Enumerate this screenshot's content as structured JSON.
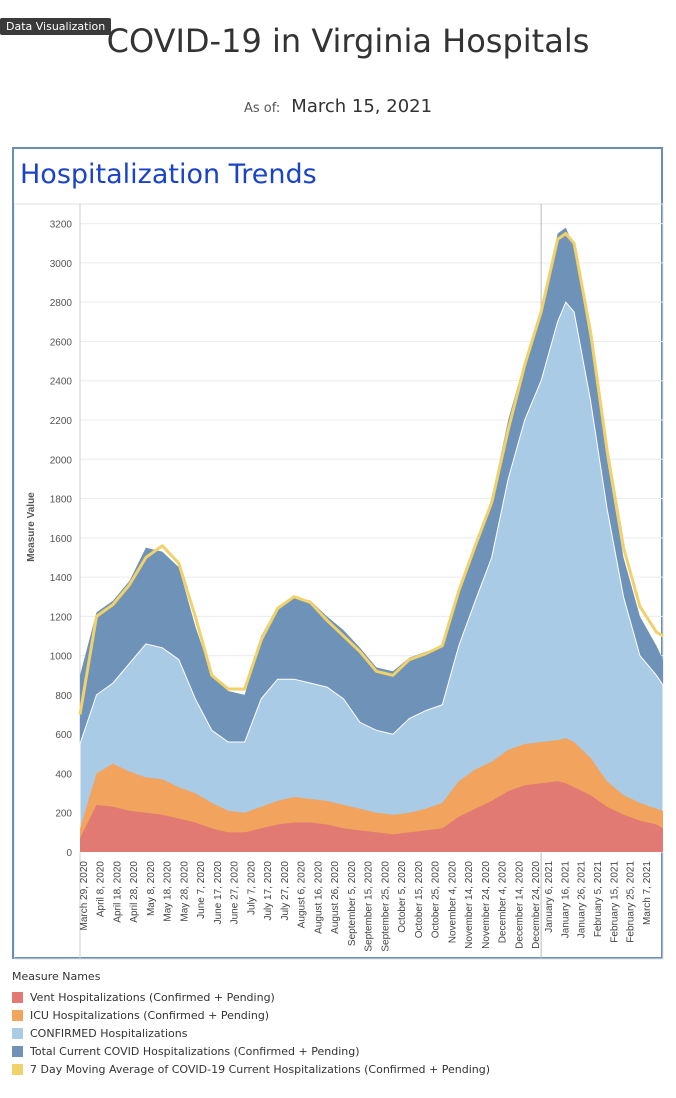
{
  "header": {
    "badge": "Data Visualization",
    "title": "COVID-19 in Virginia Hospitals",
    "asof_label": "As of:",
    "asof_value": "March 15, 2021"
  },
  "panel": {
    "title": "Hospitalization Trends"
  },
  "legend": {
    "title": "Measure Names",
    "items": [
      {
        "label": "Vent Hospitalizations (Confirmed + Pending)",
        "color": "#e07a72"
      },
      {
        "label": "ICU Hospitalizations (Confirmed + Pending)",
        "color": "#f2a35e"
      },
      {
        "label": "CONFIRMED Hospitalizations",
        "color": "#a9cbe6"
      },
      {
        "label": "Total Current COVID Hospitalizations (Confirmed + Pending)",
        "color": "#6f93b8"
      },
      {
        "label": "7 Day Moving Average of COVID-19 Current Hospitalizations (Confirmed + Pending)",
        "color": "#f0d16a"
      }
    ]
  },
  "chart_data": {
    "type": "area",
    "ylabel": "Measure Value",
    "ylim": [
      0,
      3300
    ],
    "yticks": [
      0,
      200,
      400,
      600,
      800,
      1000,
      1200,
      1400,
      1600,
      1800,
      2000,
      2200,
      2400,
      2600,
      2800,
      3000,
      3200
    ],
    "x_start": "2020-03-26",
    "x_end": "2021-03-15",
    "xticks": [
      "March 29, 2020",
      "April 8, 2020",
      "April 18, 2020",
      "April 28, 2020",
      "May 8, 2020",
      "May 18, 2020",
      "May 28, 2020",
      "June 7, 2020",
      "June 17, 2020",
      "June 27, 2020",
      "July 7, 2020",
      "July 17, 2020",
      "July 27, 2020",
      "August 6, 2020",
      "August 16, 2020",
      "August 26, 2020",
      "September 5, 2020",
      "September 15, 2020",
      "September 25, 2020",
      "October 5, 2020",
      "October 15, 2020",
      "October 25, 2020",
      "November 4, 2020",
      "November 14, 2020",
      "November 24, 2020",
      "December 4, 2020",
      "December 14, 2020",
      "December 24, 2020",
      "January 6, 2021",
      "January 16, 2021",
      "January 26, 2021",
      "February 5, 2021",
      "February 15, 2021",
      "February 25, 2021",
      "March 7, 2021"
    ],
    "divider_date": "2020-12-31",
    "dates": [
      "2020-03-26",
      "2020-04-05",
      "2020-04-15",
      "2020-04-25",
      "2020-05-05",
      "2020-05-15",
      "2020-05-25",
      "2020-06-04",
      "2020-06-14",
      "2020-06-24",
      "2020-07-04",
      "2020-07-14",
      "2020-07-24",
      "2020-08-03",
      "2020-08-13",
      "2020-08-23",
      "2020-09-02",
      "2020-09-12",
      "2020-09-22",
      "2020-10-02",
      "2020-10-12",
      "2020-10-22",
      "2020-11-01",
      "2020-11-11",
      "2020-11-21",
      "2020-12-01",
      "2020-12-11",
      "2020-12-21",
      "2020-12-31",
      "2021-01-10",
      "2021-01-15",
      "2021-01-20",
      "2021-01-30",
      "2021-02-09",
      "2021-02-19",
      "2021-03-01",
      "2021-03-11",
      "2021-03-15"
    ],
    "series": [
      {
        "name": "Total Current COVID Hospitalizations (Confirmed + Pending)",
        "values": [
          900,
          1220,
          1280,
          1380,
          1550,
          1530,
          1450,
          1150,
          900,
          820,
          800,
          1100,
          1250,
          1300,
          1280,
          1200,
          1130,
          1040,
          940,
          920,
          990,
          1020,
          1050,
          1350,
          1560,
          1800,
          2200,
          2500,
          2750,
          3150,
          3180,
          3080,
          2600,
          2000,
          1500,
          1200,
          1050,
          980
        ]
      },
      {
        "name": "CONFIRMED Hospitalizations",
        "values": [
          550,
          800,
          860,
          960,
          1060,
          1040,
          980,
          780,
          620,
          560,
          560,
          780,
          880,
          880,
          860,
          840,
          780,
          660,
          620,
          600,
          680,
          720,
          750,
          1050,
          1280,
          1500,
          1900,
          2200,
          2400,
          2700,
          2800,
          2750,
          2300,
          1750,
          1300,
          1000,
          900,
          850
        ]
      },
      {
        "name": "ICU Hospitalizations (Confirmed + Pending)",
        "values": [
          120,
          400,
          450,
          410,
          380,
          370,
          330,
          300,
          250,
          210,
          200,
          230,
          260,
          280,
          270,
          260,
          240,
          220,
          200,
          190,
          200,
          220,
          250,
          360,
          420,
          460,
          520,
          550,
          560,
          570,
          580,
          560,
          480,
          360,
          290,
          250,
          220,
          210
        ]
      },
      {
        "name": "Vent Hospitalizations (Confirmed + Pending)",
        "values": [
          70,
          240,
          230,
          210,
          200,
          190,
          170,
          150,
          120,
          100,
          100,
          120,
          140,
          150,
          150,
          140,
          120,
          110,
          100,
          90,
          100,
          110,
          120,
          180,
          220,
          260,
          310,
          340,
          350,
          360,
          350,
          330,
          290,
          230,
          190,
          160,
          140,
          120
        ]
      },
      {
        "name": "7 Day Moving Average of COVID-19 Current Hospitalizations (Confirmed + Pending)",
        "values": [
          700,
          1200,
          1260,
          1360,
          1500,
          1560,
          1470,
          1200,
          900,
          830,
          830,
          1080,
          1240,
          1300,
          1270,
          1180,
          1100,
          1020,
          920,
          900,
          980,
          1010,
          1050,
          1330,
          1560,
          1780,
          2150,
          2480,
          2750,
          3120,
          3150,
          3100,
          2650,
          2050,
          1550,
          1250,
          1120,
          1100
        ]
      }
    ]
  }
}
